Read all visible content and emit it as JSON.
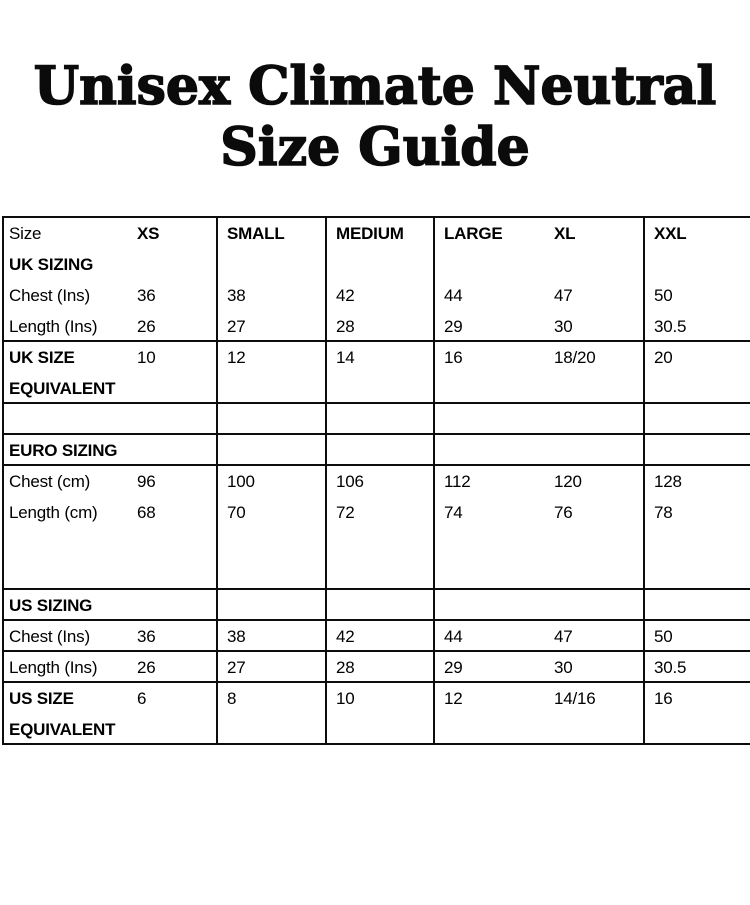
{
  "page": {
    "background": "#ffffff",
    "text_color": "#000000",
    "border_color": "#0d0d0d"
  },
  "title": {
    "line1": "Unisex Climate Neutral",
    "line2": "Size Guide"
  },
  "size_table": {
    "header": {
      "size_label": "Size",
      "xs": "XS",
      "small": "SMALL",
      "medium": "MEDIUM",
      "large": "LARGE",
      "xl": "XL",
      "xxl": "XXL"
    },
    "uk": {
      "section": "UK SIZING",
      "chest": {
        "label": "Chest (Ins)",
        "values": [
          "36",
          "38",
          "42",
          "44",
          "47",
          "50"
        ]
      },
      "length": {
        "label": "Length (Ins)",
        "values": [
          "26",
          "27",
          "28",
          "29",
          "30",
          "30.5"
        ]
      },
      "equivalent": {
        "label": "UK SIZE EQUIVALENT",
        "values": [
          "10",
          "12",
          "14",
          "16",
          "18/20",
          "20"
        ]
      }
    },
    "euro": {
      "section": "EURO SIZING",
      "chest": {
        "label": "Chest (cm)",
        "values": [
          "96",
          "100",
          "106",
          "112",
          "120",
          "128"
        ]
      },
      "length": {
        "label": "Length (cm)",
        "values": [
          "68",
          "70",
          "72",
          "74",
          "76",
          "78"
        ]
      }
    },
    "us": {
      "section": "US SIZING",
      "chest": {
        "label": "Chest (Ins)",
        "values": [
          "36",
          "38",
          "42",
          "44",
          "47",
          "50"
        ]
      },
      "length": {
        "label": "Length (Ins)",
        "values": [
          "26",
          "27",
          "28",
          "29",
          "30",
          "30.5"
        ]
      },
      "equivalent": {
        "label": "US SIZE EQUIVALENT",
        "values": [
          "6",
          "8",
          "10",
          "12",
          "14/16",
          "16"
        ]
      }
    }
  }
}
